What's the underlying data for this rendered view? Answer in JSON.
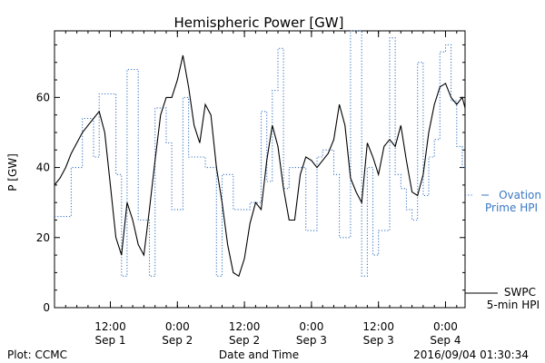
{
  "chart_data": {
    "type": "line",
    "title": "Hemispheric Power [GW]",
    "xlabel": "Date and Time",
    "ylabel": "P [GW]",
    "x_start": "2016-09-01 02:00",
    "x_range_hours": [
      0,
      73.5
    ],
    "xlim": [
      "2016-09-01 02:00",
      "2016-09-04 03:30"
    ],
    "ylim": [
      0,
      79
    ],
    "y_ticks": [
      0,
      20,
      40,
      60
    ],
    "x_ticks": [
      {
        "time": "2016-09-01 12:00",
        "label_top": "12:00",
        "label_bottom": "Sep 1"
      },
      {
        "time": "2016-09-02 00:00",
        "label_top": "0:00",
        "label_bottom": "Sep 2"
      },
      {
        "time": "2016-09-02 12:00",
        "label_top": "12:00",
        "label_bottom": "Sep 2"
      },
      {
        "time": "2016-09-03 00:00",
        "label_top": "0:00",
        "label_bottom": "Sep 3"
      },
      {
        "time": "2016-09-03 12:00",
        "label_top": "12:00",
        "label_bottom": "Sep 3"
      },
      {
        "time": "2016-09-04 00:00",
        "label_top": "0:00",
        "label_bottom": "Sep 4"
      }
    ],
    "grid": false,
    "legend_position": "right",
    "series": [
      {
        "name": "SWPC 5-min HPI",
        "color": "#000000",
        "style": "solid",
        "x_hours": [
          0,
          1,
          2,
          3,
          4,
          5,
          6,
          7,
          8,
          9,
          10,
          11,
          12,
          13,
          14,
          15,
          16,
          17,
          18,
          19,
          20,
          21,
          22,
          23,
          24,
          25,
          26,
          27,
          28,
          29,
          30,
          31,
          32,
          33,
          34,
          35,
          36,
          37,
          38,
          39,
          40,
          41,
          42,
          43,
          44,
          45,
          46,
          47,
          48,
          49,
          50,
          51,
          52,
          53,
          54,
          55,
          56,
          57,
          58,
          59,
          60,
          61,
          62,
          63,
          64,
          65,
          66,
          67,
          68,
          69,
          70,
          71,
          72,
          73,
          73.5
        ],
        "values": [
          35,
          37,
          40,
          44,
          47,
          50,
          52,
          54,
          56,
          50,
          35,
          20,
          15,
          30,
          25,
          18,
          15,
          28,
          42,
          55,
          60,
          60,
          65,
          72,
          63,
          52,
          47,
          58,
          55,
          40,
          30,
          18,
          10,
          9,
          14,
          24,
          30,
          28,
          42,
          52,
          46,
          34,
          25,
          25,
          38,
          43,
          42,
          40,
          42,
          44,
          48,
          58,
          52,
          37,
          33,
          30,
          47,
          43,
          38,
          46,
          48,
          46,
          52,
          42,
          33,
          32,
          38,
          50,
          58,
          63,
          64,
          60,
          58,
          60,
          57
        ]
      },
      {
        "name": "Ovation Prime HPI",
        "color": "#3a77c4",
        "style": "dotted",
        "step_hours": [
          0,
          3,
          5,
          7,
          8,
          11,
          12,
          13,
          15,
          17,
          18,
          20,
          21,
          23,
          24,
          26,
          27,
          29,
          30,
          32,
          35,
          37,
          38,
          39,
          40,
          41,
          42,
          43,
          45,
          47,
          48,
          50,
          51,
          53,
          55,
          56,
          57,
          58,
          60,
          61,
          62,
          63,
          64,
          65,
          66,
          67,
          68,
          69,
          70,
          71,
          72,
          73
        ],
        "values": [
          26,
          40,
          54,
          43,
          61,
          38,
          9,
          68,
          25,
          9,
          57,
          47,
          28,
          60,
          43,
          43,
          40,
          9,
          38,
          28,
          30,
          56,
          36,
          62,
          74,
          34,
          40,
          40,
          22,
          43,
          45,
          38,
          20,
          79,
          9,
          40,
          15,
          22,
          77,
          38,
          34,
          28,
          25,
          70,
          32,
          43,
          48,
          73,
          75,
          59,
          46,
          40
        ]
      }
    ],
    "legend": [
      {
        "series": "Ovation Prime HPI",
        "lines": [
          "Ovation",
          "Prime HPI"
        ],
        "color": "#3a77c4"
      },
      {
        "series": "SWPC 5-min HPI",
        "lines": [
          "SWPC",
          "5-min HPI"
        ],
        "color": "#000000"
      }
    ]
  },
  "footer": {
    "left": "Plot: CCMC",
    "center": "Date and Time",
    "right": "2016/09/04 01:30:34"
  }
}
